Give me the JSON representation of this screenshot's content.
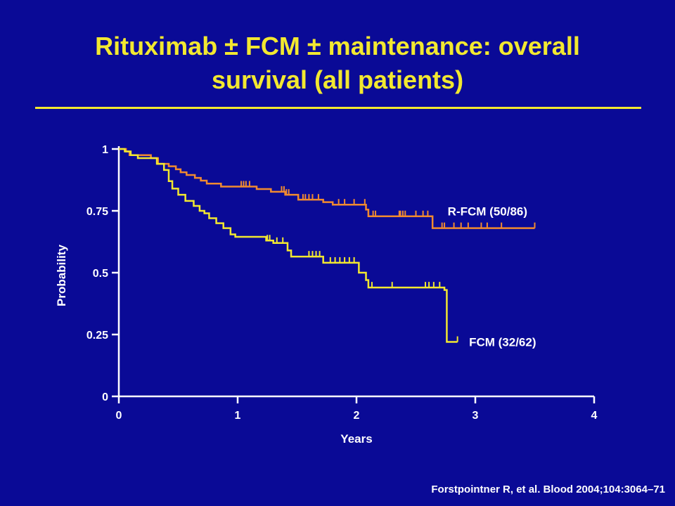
{
  "slide": {
    "title_line1": "Rituximab ± FCM ± maintenance: overall",
    "title_line2": "survival (all patients)",
    "citation": "Forstpointner R, et al. Blood 2004;104:3064–71"
  },
  "colors": {
    "background": "#0a0a96",
    "title": "#f2e830",
    "axis": "#ffffff",
    "r_fcm": "#f08a30",
    "fcm": "#f2e830"
  },
  "chart_data": {
    "type": "line",
    "step": true,
    "title": "",
    "xlabel": "Years",
    "ylabel": "Probability",
    "xlim": [
      0,
      4
    ],
    "ylim": [
      0,
      1
    ],
    "x_ticks": [
      0,
      1,
      2,
      3,
      4
    ],
    "x_tick_labels": [
      "0",
      "1",
      "2",
      "3",
      "4"
    ],
    "y_ticks": [
      0,
      0.25,
      0.5,
      0.75,
      1
    ],
    "y_tick_labels": [
      "0",
      "0.25",
      "0.5",
      "0.75",
      "1"
    ],
    "grid": false,
    "legend": "inline labels at curve ends",
    "series": [
      {
        "name": "R-FCM (50/86)",
        "color": "#f08a30",
        "points": [
          [
            0,
            1.0
          ],
          [
            0.06,
            0.99
          ],
          [
            0.09,
            0.975
          ],
          [
            0.27,
            0.963
          ],
          [
            0.33,
            0.94
          ],
          [
            0.42,
            0.93
          ],
          [
            0.48,
            0.918
          ],
          [
            0.52,
            0.906
          ],
          [
            0.57,
            0.895
          ],
          [
            0.64,
            0.883
          ],
          [
            0.69,
            0.872
          ],
          [
            0.74,
            0.86
          ],
          [
            0.86,
            0.848
          ],
          [
            1.0,
            0.848
          ],
          [
            1.16,
            0.838
          ],
          [
            1.28,
            0.827
          ],
          [
            1.4,
            0.815
          ],
          [
            1.51,
            0.795
          ],
          [
            1.72,
            0.785
          ],
          [
            1.75,
            0.785
          ],
          [
            1.8,
            0.775
          ],
          [
            2.05,
            0.775
          ],
          [
            2.08,
            0.755
          ],
          [
            2.1,
            0.728
          ],
          [
            2.3,
            0.728
          ],
          [
            2.45,
            0.728
          ],
          [
            2.63,
            0.728
          ],
          [
            2.64,
            0.68
          ],
          [
            2.65,
            0.68
          ],
          [
            3.0,
            0.68
          ],
          [
            3.5,
            0.68
          ]
        ],
        "censor_x": [
          1.03,
          1.05,
          1.07,
          1.1,
          1.37,
          1.39,
          1.41,
          1.43,
          1.55,
          1.57,
          1.6,
          1.63,
          1.68,
          1.85,
          1.9,
          1.98,
          2.07,
          2.08,
          2.1,
          2.14,
          2.16,
          2.36,
          2.37,
          2.39,
          2.41,
          2.5,
          2.56,
          2.6,
          2.72,
          2.74,
          2.82,
          2.88,
          2.94,
          3.05,
          3.1,
          3.22,
          3.5
        ]
      },
      {
        "name": "FCM (32/62)",
        "color": "#f2e830",
        "points": [
          [
            0,
            1.0
          ],
          [
            0.05,
            0.99
          ],
          [
            0.1,
            0.975
          ],
          [
            0.16,
            0.963
          ],
          [
            0.32,
            0.94
          ],
          [
            0.38,
            0.915
          ],
          [
            0.42,
            0.87
          ],
          [
            0.45,
            0.84
          ],
          [
            0.5,
            0.815
          ],
          [
            0.56,
            0.79
          ],
          [
            0.63,
            0.77
          ],
          [
            0.68,
            0.75
          ],
          [
            0.72,
            0.74
          ],
          [
            0.76,
            0.72
          ],
          [
            0.82,
            0.7
          ],
          [
            0.88,
            0.68
          ],
          [
            0.94,
            0.655
          ],
          [
            0.98,
            0.645
          ],
          [
            1.2,
            0.645
          ],
          [
            1.24,
            0.63
          ],
          [
            1.3,
            0.62
          ],
          [
            1.4,
            0.62
          ],
          [
            1.42,
            0.59
          ],
          [
            1.45,
            0.565
          ],
          [
            1.63,
            0.565
          ],
          [
            1.72,
            0.54
          ],
          [
            2.0,
            0.54
          ],
          [
            2.02,
            0.5
          ],
          [
            2.08,
            0.47
          ],
          [
            2.1,
            0.44
          ],
          [
            2.7,
            0.44
          ],
          [
            2.74,
            0.43
          ],
          [
            2.76,
            0.22
          ],
          [
            2.85,
            0.22
          ]
        ],
        "censor_x": [
          1.25,
          1.27,
          1.33,
          1.38,
          1.6,
          1.63,
          1.66,
          1.69,
          1.78,
          1.82,
          1.86,
          1.9,
          1.94,
          1.98,
          2.13,
          2.3,
          2.58,
          2.61,
          2.65,
          2.7,
          2.85
        ]
      }
    ]
  }
}
